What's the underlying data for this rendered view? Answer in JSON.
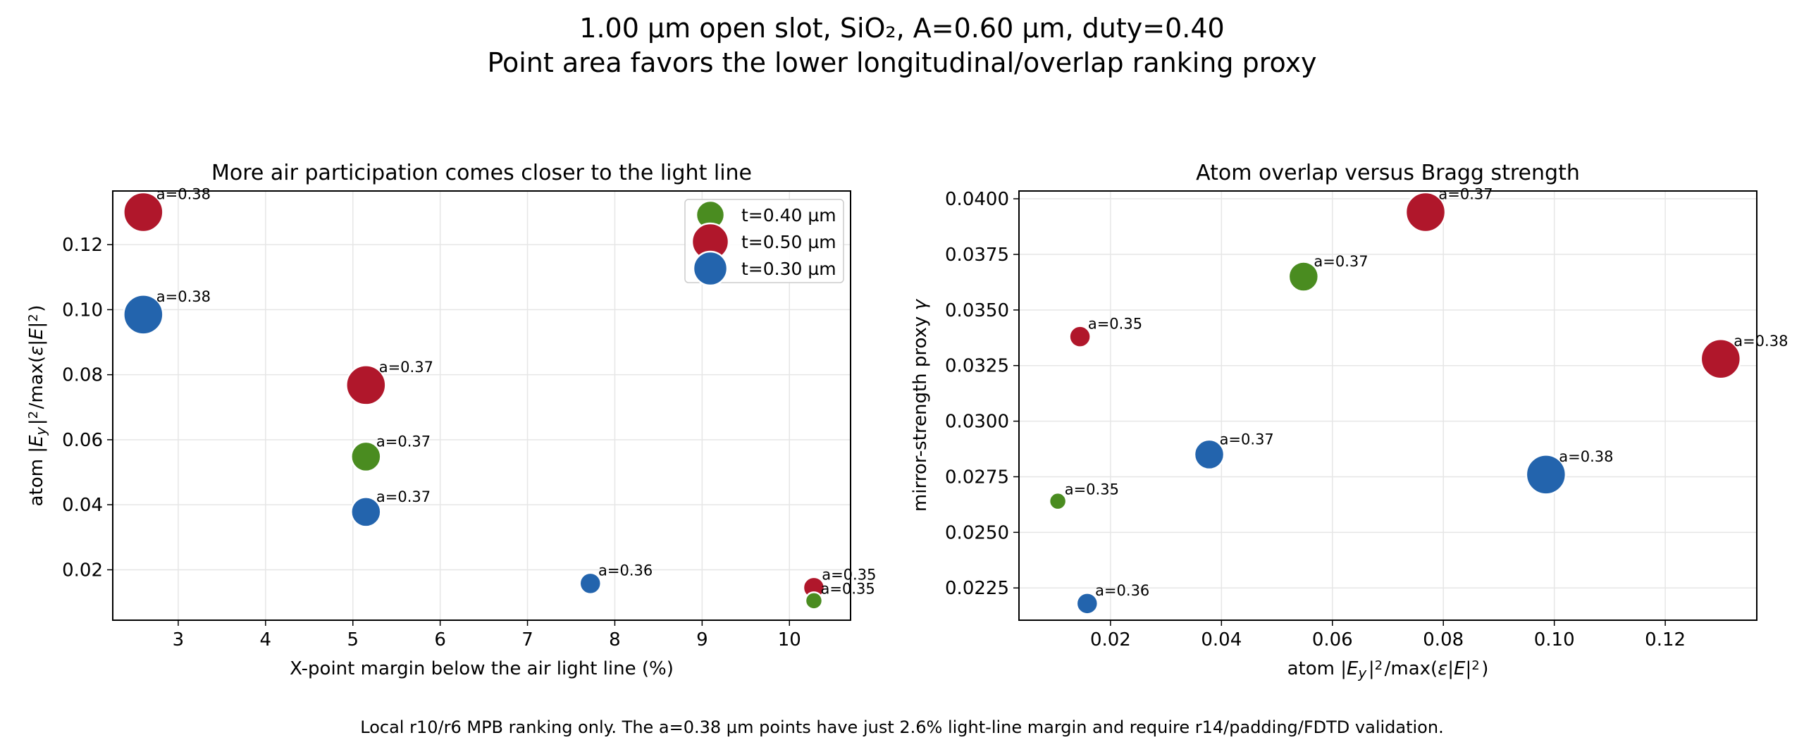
{
  "figure": {
    "title_line1": "1.00 µm open slot, SiO₂, A=0.60 µm, duty=0.40",
    "title_line2": "Point area favors the lower longitudinal/overlap ranking proxy",
    "footer": "Local r10/r6 MPB ranking only. The a=0.38 µm points have just 2.6% light-line margin and require r14/padding/FDTD validation."
  },
  "legend": {
    "placement": "upper right of left panel",
    "entries": [
      {
        "label": "t=0.40 µm",
        "color": "#4a8c20"
      },
      {
        "label": "t=0.50 µm",
        "color": "#b0172b"
      },
      {
        "label": "t=0.30 µm",
        "color": "#2364ad"
      }
    ]
  },
  "chart_data": [
    {
      "type": "scatter",
      "title": "More air participation comes closer to the light line",
      "xlabel": "X-point margin below the air light line (%)",
      "ylabel": "atom |E_y|²/max(ε|E|²)",
      "xlim": [
        2.25,
        10.7
      ],
      "ylim": [
        0.0045,
        0.1365
      ],
      "xticks": [
        "3",
        "4",
        "5",
        "6",
        "7",
        "8",
        "9",
        "10"
      ],
      "yticks": [
        "0.02",
        "0.04",
        "0.06",
        "0.08",
        "0.10",
        "0.12"
      ],
      "grid": true,
      "points": [
        {
          "series": "t=0.50 µm",
          "label": "a=0.38",
          "x": 2.6,
          "y": 0.13,
          "size": "large"
        },
        {
          "series": "t=0.30 µm",
          "label": "a=0.38",
          "x": 2.6,
          "y": 0.0985,
          "size": "large"
        },
        {
          "series": "t=0.50 µm",
          "label": "a=0.37",
          "x": 5.15,
          "y": 0.0768,
          "size": "large"
        },
        {
          "series": "t=0.40 µm",
          "label": "a=0.37",
          "x": 5.15,
          "y": 0.0548,
          "size": "medium"
        },
        {
          "series": "t=0.30 µm",
          "label": "a=0.37",
          "x": 5.15,
          "y": 0.0378,
          "size": "medium"
        },
        {
          "series": "t=0.30 µm",
          "label": "a=0.36",
          "x": 7.72,
          "y": 0.0158,
          "size": "small"
        },
        {
          "series": "t=0.50 µm",
          "label": "a=0.35",
          "x": 10.28,
          "y": 0.0145,
          "size": "small"
        },
        {
          "series": "t=0.40 µm",
          "label": "a=0.35",
          "x": 10.28,
          "y": 0.0105,
          "size": "tiny"
        }
      ]
    },
    {
      "type": "scatter",
      "title": "Atom overlap versus Bragg strength",
      "xlabel": "atom |E_y|²/max(ε|E|²)",
      "ylabel": "mirror-strength proxy γ",
      "xlim": [
        0.0035,
        0.1365
      ],
      "ylim": [
        0.02105,
        0.04035
      ],
      "xticks": [
        "0.02",
        "0.04",
        "0.06",
        "0.08",
        "0.10",
        "0.12"
      ],
      "yticks": [
        "0.0225",
        "0.0250",
        "0.0275",
        "0.0300",
        "0.0325",
        "0.0350",
        "0.0375",
        "0.0400"
      ],
      "grid": true,
      "points": [
        {
          "series": "t=0.50 µm",
          "label": "a=0.37",
          "x": 0.0768,
          "y": 0.0394,
          "size": "large"
        },
        {
          "series": "t=0.40 µm",
          "label": "a=0.37",
          "x": 0.0548,
          "y": 0.0365,
          "size": "medium"
        },
        {
          "series": "t=0.50 µm",
          "label": "a=0.35",
          "x": 0.0145,
          "y": 0.0338,
          "size": "small"
        },
        {
          "series": "t=0.50 µm",
          "label": "a=0.38",
          "x": 0.13,
          "y": 0.0328,
          "size": "large"
        },
        {
          "series": "t=0.30 µm",
          "label": "a=0.37",
          "x": 0.0378,
          "y": 0.0285,
          "size": "medium"
        },
        {
          "series": "t=0.30 µm",
          "label": "a=0.38",
          "x": 0.0985,
          "y": 0.0276,
          "size": "large"
        },
        {
          "series": "t=0.40 µm",
          "label": "a=0.35",
          "x": 0.0105,
          "y": 0.0264,
          "size": "tiny"
        },
        {
          "series": "t=0.30 µm",
          "label": "a=0.36",
          "x": 0.0158,
          "y": 0.0218,
          "size": "small"
        }
      ]
    }
  ]
}
